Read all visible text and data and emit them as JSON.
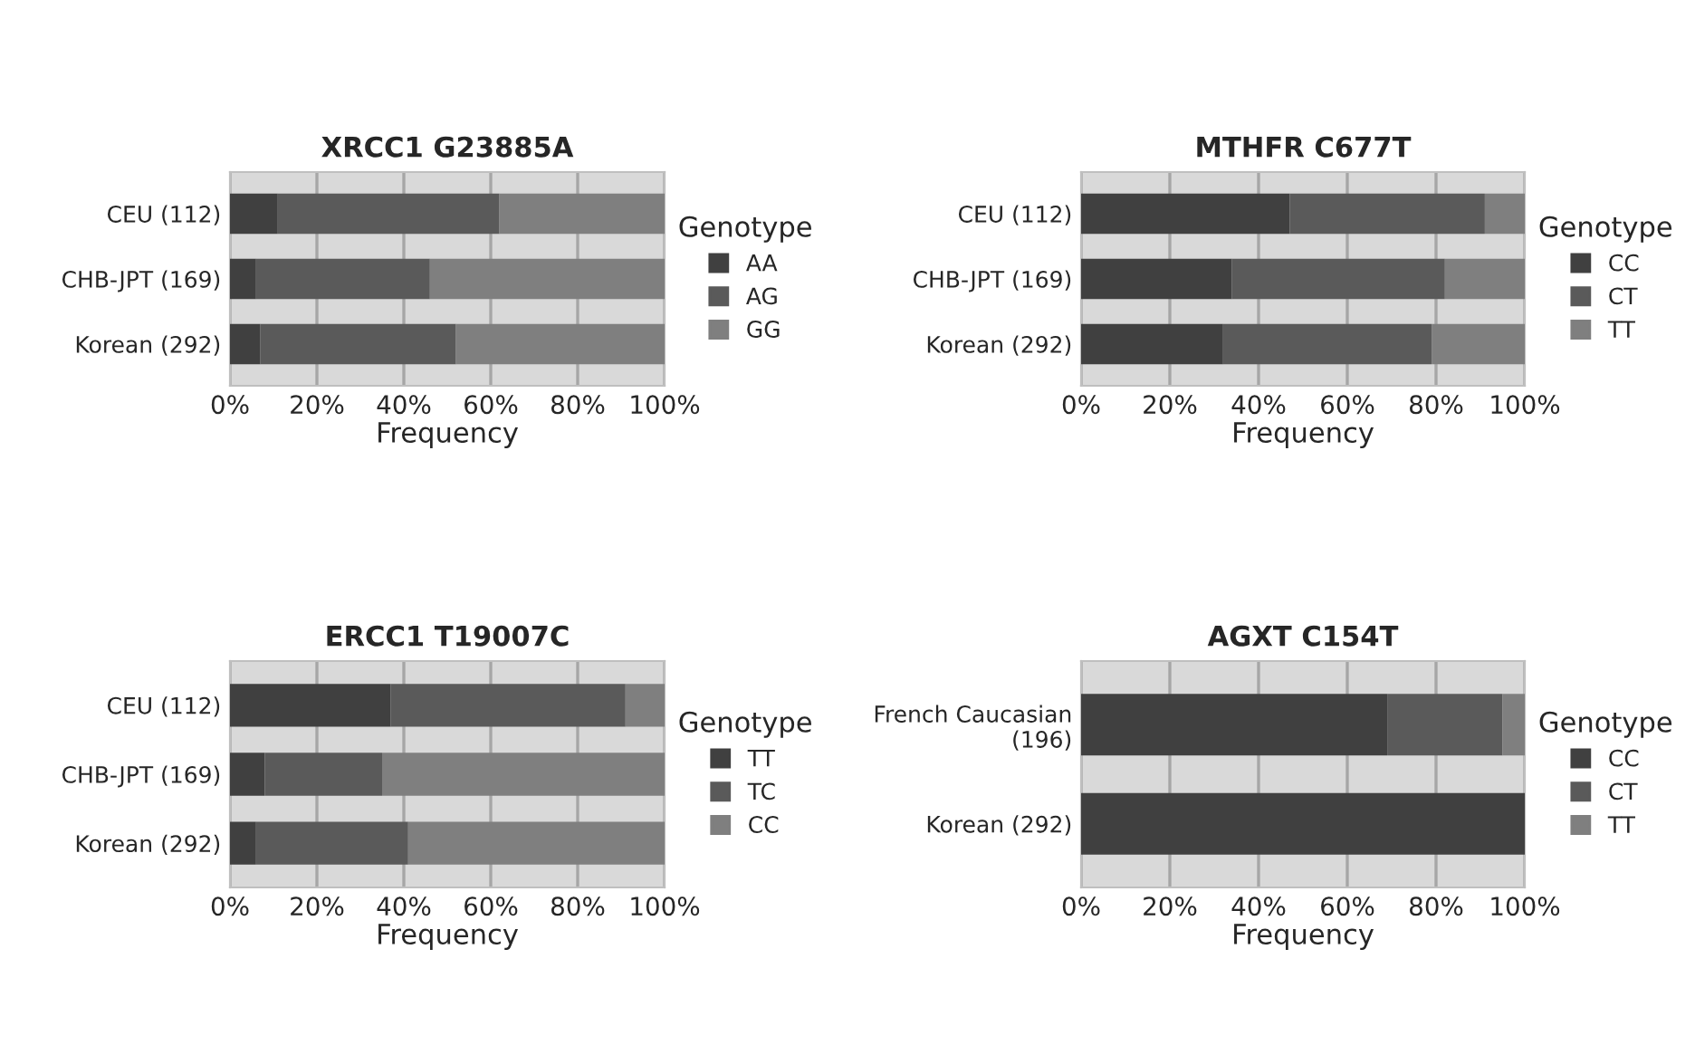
{
  "chart_data": [
    {
      "type": "bar",
      "title": "XRCC1 G23885A",
      "xlabel": "Frequency",
      "orientation": "horizontal",
      "stacked": true,
      "legend": "right",
      "legend_title": "Genotype",
      "grid": "x",
      "categories": [
        "CEU (112)",
        "CHB-JPT (169)",
        "Korean (292)"
      ],
      "xlim": [
        0,
        100
      ],
      "xticks": [
        {
          "value": 0,
          "label": "0%"
        },
        {
          "value": 20,
          "label": "20%"
        },
        {
          "value": 40,
          "label": "40%"
        },
        {
          "value": 60,
          "label": "60%"
        },
        {
          "value": 80,
          "label": "80%"
        },
        {
          "value": 100,
          "label": "100%"
        }
      ],
      "series": [
        {
          "name": "AA",
          "color": "#404040",
          "values": [
            11,
            6,
            7
          ]
        },
        {
          "name": "AG",
          "color": "#5a5a5a",
          "values": [
            51,
            40,
            45
          ]
        },
        {
          "name": "GG",
          "color": "#7f7f7f",
          "values": [
            38,
            54,
            48
          ]
        }
      ]
    },
    {
      "type": "bar",
      "title": "MTHFR C677T",
      "xlabel": "Frequency",
      "orientation": "horizontal",
      "stacked": true,
      "legend": "right",
      "legend_title": "Genotype",
      "grid": "x",
      "categories": [
        "CEU (112)",
        "CHB-JPT (169)",
        "Korean (292)"
      ],
      "xlim": [
        0,
        100
      ],
      "xticks": [
        {
          "value": 0,
          "label": "0%"
        },
        {
          "value": 20,
          "label": "20%"
        },
        {
          "value": 40,
          "label": "40%"
        },
        {
          "value": 60,
          "label": "60%"
        },
        {
          "value": 80,
          "label": "80%"
        },
        {
          "value": 100,
          "label": "100%"
        }
      ],
      "series": [
        {
          "name": "CC",
          "color": "#404040",
          "values": [
            47,
            34,
            32
          ]
        },
        {
          "name": "CT",
          "color": "#5a5a5a",
          "values": [
            44,
            48,
            47
          ]
        },
        {
          "name": "TT",
          "color": "#7f7f7f",
          "values": [
            9,
            18,
            21
          ]
        }
      ]
    },
    {
      "type": "bar",
      "title": "ERCC1 T19007C",
      "xlabel": "Frequency",
      "orientation": "horizontal",
      "stacked": true,
      "legend": "right",
      "legend_title": "Genotype",
      "grid": "x",
      "categories": [
        "CEU (112)",
        "CHB-JPT (169)",
        "Korean (292)"
      ],
      "xlim": [
        0,
        100
      ],
      "xticks": [
        {
          "value": 0,
          "label": "0%"
        },
        {
          "value": 20,
          "label": "20%"
        },
        {
          "value": 40,
          "label": "40%"
        },
        {
          "value": 60,
          "label": "60%"
        },
        {
          "value": 80,
          "label": "80%"
        },
        {
          "value": 100,
          "label": "100%"
        }
      ],
      "series": [
        {
          "name": "TT",
          "color": "#404040",
          "values": [
            37,
            8,
            6
          ]
        },
        {
          "name": "TC",
          "color": "#5a5a5a",
          "values": [
            54,
            27,
            35
          ]
        },
        {
          "name": "CC",
          "color": "#7f7f7f",
          "values": [
            9,
            65,
            59
          ]
        }
      ]
    },
    {
      "type": "bar",
      "title": "AGXT C154T",
      "xlabel": "Frequency",
      "orientation": "horizontal",
      "stacked": true,
      "legend": "right",
      "legend_title": "Genotype",
      "grid": "x",
      "categories": [
        "French Caucasian\n(196)",
        "Korean (292)"
      ],
      "xlim": [
        0,
        100
      ],
      "xticks": [
        {
          "value": 0,
          "label": "0%"
        },
        {
          "value": 20,
          "label": "20%"
        },
        {
          "value": 40,
          "label": "40%"
        },
        {
          "value": 60,
          "label": "60%"
        },
        {
          "value": 80,
          "label": "80%"
        },
        {
          "value": 100,
          "label": "100%"
        }
      ],
      "series": [
        {
          "name": "CC",
          "color": "#404040",
          "values": [
            69,
            100
          ]
        },
        {
          "name": "CT",
          "color": "#5a5a5a",
          "values": [
            26,
            0
          ]
        },
        {
          "name": "TT",
          "color": "#7f7f7f",
          "values": [
            5,
            0
          ]
        }
      ]
    }
  ]
}
